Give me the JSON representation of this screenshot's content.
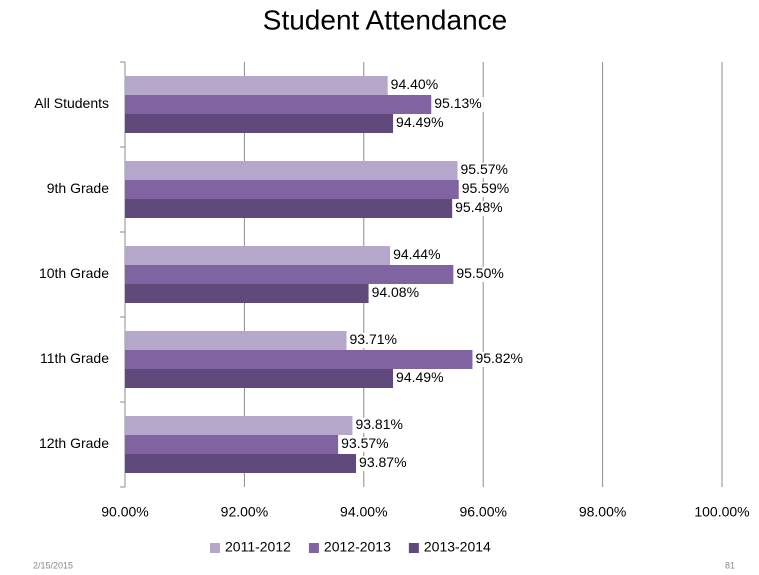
{
  "chart_data": {
    "type": "bar",
    "orientation": "horizontal",
    "title": "Student Attendance",
    "categories": [
      "All Students",
      "9th Grade",
      "10th Grade",
      "11th Grade",
      "12th Grade"
    ],
    "series": [
      {
        "name": "2011-2012",
        "color": "#b4a7ca",
        "values": [
          94.4,
          95.57,
          94.44,
          93.71,
          93.81
        ],
        "value_labels": [
          "94.40%",
          "95.57%",
          "94.44%",
          "93.71%",
          "93.81%"
        ]
      },
      {
        "name": "2012-2013",
        "color": "#8064a2",
        "values": [
          95.13,
          95.59,
          95.5,
          95.82,
          93.57
        ],
        "value_labels": [
          "95.13%",
          "95.59%",
          "95.50%",
          "95.82%",
          "93.57%"
        ]
      },
      {
        "name": "2013-2014",
        "color": "#60497b",
        "values": [
          94.49,
          95.48,
          94.08,
          94.49,
          93.87
        ],
        "value_labels": [
          "94.49%",
          "95.48%",
          "94.08%",
          "94.49%",
          "93.87%"
        ]
      }
    ],
    "xlim": [
      90,
      100
    ],
    "xticks": [
      {
        "value": 90,
        "label": "90.00%"
      },
      {
        "value": 92,
        "label": "92.00%"
      },
      {
        "value": 94,
        "label": "94.00%"
      },
      {
        "value": 96,
        "label": "96.00%"
      },
      {
        "value": 98,
        "label": "98.00%"
      },
      {
        "value": 100,
        "label": "100.00%"
      }
    ],
    "grid": true,
    "legend": "bottom",
    "footer_date": "2/15/2015",
    "page_number": "81"
  }
}
